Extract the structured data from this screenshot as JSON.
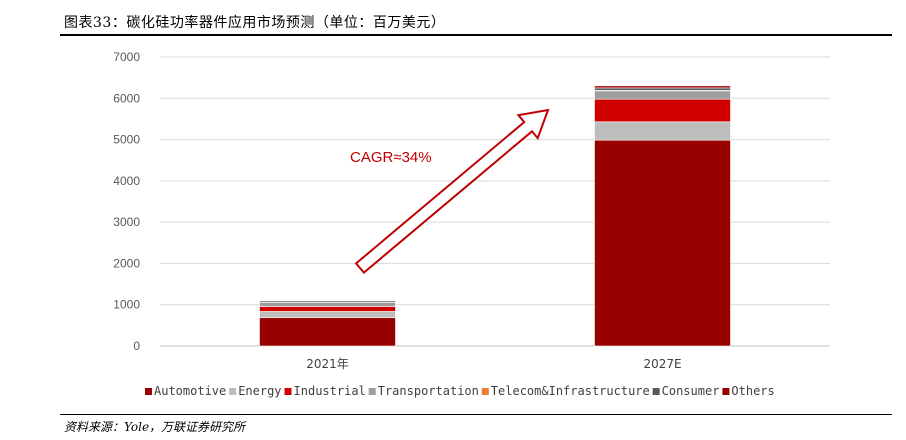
{
  "header": {
    "title": "图表33：碳化硅功率器件应用市场预测（单位：百万美元）"
  },
  "footer": {
    "source": "资料来源：Yole，万联证券研究所"
  },
  "annotation": {
    "cagr_label": "CAGR≈34%"
  },
  "colors": {
    "Automotive": "#990000",
    "Energy": "#bdbdbd",
    "Industrial": "#d00000",
    "Transportation": "#9e9e9e",
    "Telecom&Infrastructure": "#ed7d31",
    "Consumer": "#595959",
    "Others": "#990000",
    "arrow": "#c00000"
  },
  "chart_data": {
    "type": "bar",
    "stacked": true,
    "categories": [
      "2021年",
      "2027E"
    ],
    "series": [
      {
        "name": "Automotive",
        "values": [
          685,
          4986
        ]
      },
      {
        "name": "Energy",
        "values": [
          151,
          445
        ]
      },
      {
        "name": "Industrial",
        "values": [
          122,
          548
        ]
      },
      {
        "name": "Transportation",
        "values": [
          101,
          202
        ]
      },
      {
        "name": "Telecom&Infrastructure",
        "values": [
          0,
          10
        ]
      },
      {
        "name": "Consumer",
        "values": [
          31,
          60
        ]
      },
      {
        "name": "Others",
        "values": [
          0,
          50
        ]
      }
    ],
    "y_ticks": [
      "0",
      "1000",
      "2000",
      "3000",
      "4000",
      "5000",
      "6000",
      "7000"
    ],
    "ylim": [
      0,
      7000
    ],
    "grid": true,
    "legend_position": "bottom"
  }
}
